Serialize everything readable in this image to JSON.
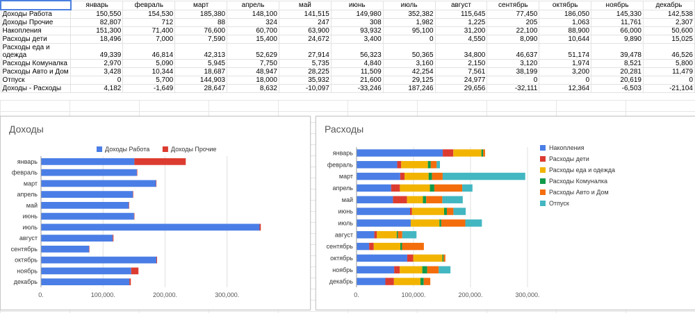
{
  "sheet": {
    "months": [
      "январь",
      "февраль",
      "март",
      "апрель",
      "май",
      "июнь",
      "июль",
      "август",
      "сентябрь",
      "октябрь",
      "ноябрь",
      "декабрь"
    ],
    "rows": [
      {
        "label": "Доходы Работа",
        "values": [
          "150,550",
          "154,530",
          "185,380",
          "148,100",
          "141,515",
          "149,980",
          "352,382",
          "115,645",
          "77,450",
          "186,050",
          "145,330",
          "142,538"
        ]
      },
      {
        "label": "Доходы Прочие",
        "values": [
          "82,807",
          "712",
          "88",
          "324",
          "247",
          "308",
          "1,982",
          "1,225",
          "205",
          "1,063",
          "11,761",
          "2,307"
        ]
      },
      {
        "label": "Накопления",
        "values": [
          "151,300",
          "71,400",
          "76,600",
          "60,700",
          "63,900",
          "93,932",
          "95,100",
          "31,200",
          "22,100",
          "88,900",
          "66,000",
          "50,600"
        ]
      },
      {
        "label": "Расходы дети",
        "values": [
          "18,496",
          "7,000",
          "7,590",
          "15,400",
          "24,672",
          "3,400",
          "0",
          "4,550",
          "8,090",
          "10,644",
          "9,890",
          "15,025"
        ]
      },
      {
        "label": "Расходы еда и одежда",
        "values": [
          "49,339",
          "46,814",
          "42,313",
          "52,629",
          "27,914",
          "56,323",
          "50,365",
          "34,800",
          "46,637",
          "51,174",
          "39,478",
          "46,526"
        ]
      },
      {
        "label": "Расходы Комуналка",
        "values": [
          "2,970",
          "5,090",
          "5,945",
          "7,750",
          "5,735",
          "4,840",
          "3,160",
          "2,150",
          "3,120",
          "1,974",
          "8,521",
          "5,800"
        ]
      },
      {
        "label": "Расходы Авто и Дом",
        "values": [
          "3,428",
          "10,344",
          "18,687",
          "48,947",
          "28,225",
          "11,509",
          "42,254",
          "7,561",
          "38,199",
          "3,200",
          "20,281",
          "11,479"
        ]
      },
      {
        "label": "Отпуск",
        "values": [
          "0",
          "5,700",
          "144,903",
          "18,000",
          "35,932",
          "21,600",
          "29,125",
          "24,977",
          "0",
          "0",
          "20,619",
          "0"
        ]
      },
      {
        "label": "Доходы - Расходы",
        "values": [
          "4,182",
          "-1,649",
          "28,647",
          "8,632",
          "-10,097",
          "-33,246",
          "187,246",
          "29,656",
          "-32,111",
          "12,364",
          "-6,503",
          "-21,104"
        ]
      }
    ]
  },
  "income_chart": {
    "title": "Доходы",
    "type": "bar",
    "categories": [
      "январь",
      "февраль",
      "март",
      "апрель",
      "май",
      "июнь",
      "июль",
      "август",
      "сентябрь",
      "октябрь",
      "ноябрь",
      "декабрь"
    ],
    "series": [
      {
        "name": "Доходы Работа",
        "color": "#4a7ee6",
        "values": [
          150550,
          154530,
          185380,
          148100,
          141515,
          149980,
          352382,
          115645,
          77450,
          186050,
          145330,
          142538
        ]
      },
      {
        "name": "Доходы Прочие",
        "color": "#dc3c30",
        "values": [
          82807,
          712,
          88,
          324,
          247,
          308,
          1982,
          1225,
          205,
          1063,
          11761,
          2307
        ]
      }
    ],
    "ticks": [
      0,
      100000,
      200000,
      300000
    ],
    "tick_labels": [
      "0.",
      "100,000.",
      "200,000.",
      "300,000."
    ],
    "xmax": 400000,
    "legend": "top"
  },
  "expense_chart": {
    "title": "Расходы",
    "type": "bar",
    "categories": [
      "январь",
      "февраль",
      "март",
      "апрель",
      "май",
      "июнь",
      "июль",
      "август",
      "сентябрь",
      "октябрь",
      "ноябрь",
      "декабрь"
    ],
    "series": [
      {
        "name": "Накопления",
        "color": "#4a7ee6",
        "values": [
          151300,
          71400,
          76600,
          60700,
          63900,
          93932,
          95100,
          31200,
          22100,
          88900,
          66000,
          50600
        ]
      },
      {
        "name": "Расходы дети",
        "color": "#dc3c30",
        "values": [
          18496,
          7000,
          7590,
          15400,
          24672,
          3400,
          0,
          4550,
          8090,
          10644,
          9890,
          15025
        ]
      },
      {
        "name": "Расходы еда и одежда",
        "color": "#f2b400",
        "values": [
          49339,
          46814,
          42313,
          52629,
          27914,
          56323,
          50365,
          34800,
          46637,
          51174,
          39478,
          46526
        ]
      },
      {
        "name": "Расходы Комуналка",
        "color": "#109a4a",
        "values": [
          2970,
          5090,
          5945,
          7750,
          5735,
          4840,
          3160,
          2150,
          3120,
          1974,
          8521,
          5800
        ]
      },
      {
        "name": "Расходы Авто и Дом",
        "color": "#f46d0c",
        "values": [
          3428,
          10344,
          18687,
          48947,
          28225,
          11509,
          42254,
          7561,
          38199,
          3200,
          20281,
          11479
        ]
      },
      {
        "name": "Отпуск",
        "color": "#43b7c1",
        "values": [
          0,
          5700,
          144903,
          18000,
          35932,
          21600,
          29125,
          24977,
          0,
          0,
          20619,
          0
        ]
      }
    ],
    "ticks": [
      0,
      100000,
      200000,
      300000
    ],
    "tick_labels": [
      "0.",
      "100,000.",
      "200,000.",
      "300,000."
    ],
    "xmax": 300000,
    "legend": "right"
  }
}
